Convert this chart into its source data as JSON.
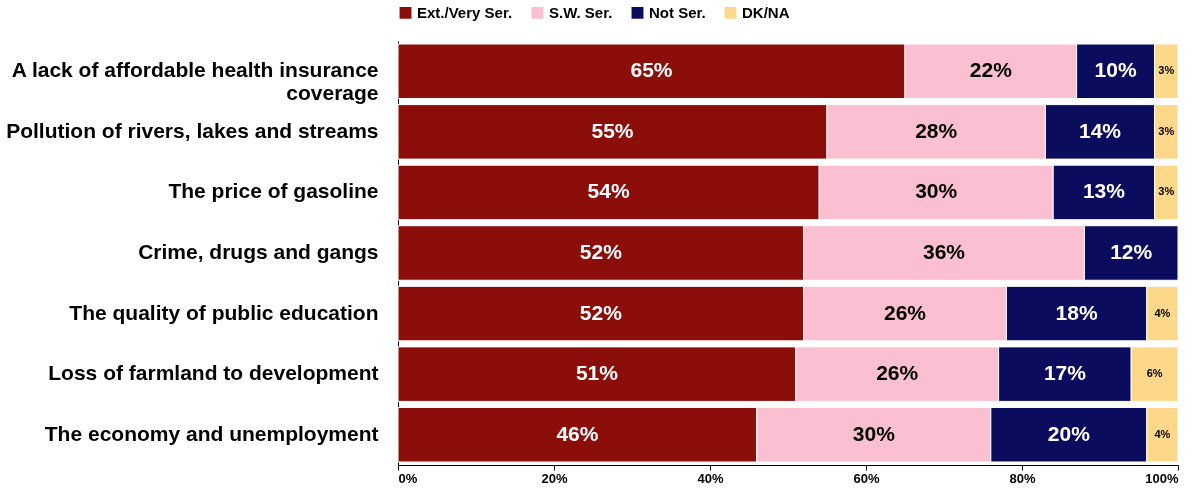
{
  "chart_data": {
    "type": "bar",
    "orientation": "horizontal",
    "stacked": true,
    "categories": [
      "A lack of affordable health insurance coverage",
      "Pollution of rivers, lakes and streams",
      "The price of gasoline",
      "Crime, drugs and gangs",
      "The quality of public education",
      "Loss of farmland to development",
      "The economy and unemployment"
    ],
    "series": [
      {
        "name": "Ext./Very Ser.",
        "color": "#8b0e0a",
        "values": [
          65,
          55,
          54,
          52,
          52,
          51,
          46
        ],
        "value_labels": [
          "65%",
          "55%",
          "54%",
          "52%",
          "52%",
          "51%",
          "46%"
        ]
      },
      {
        "name": "S.W. Ser.",
        "color": "#fbbfd2",
        "values": [
          22,
          28,
          30,
          36,
          26,
          26,
          30
        ],
        "value_labels": [
          "22%",
          "28%",
          "30%",
          "36%",
          "26%",
          "26%",
          "30%"
        ]
      },
      {
        "name": "Not Ser.",
        "color": "#0c0c5e",
        "values": [
          10,
          14,
          13,
          12,
          18,
          17,
          20
        ],
        "value_labels": [
          "10%",
          "14%",
          "13%",
          "12%",
          "18%",
          "17%",
          "20%"
        ]
      },
      {
        "name": "DK/NA",
        "color": "#fdd88a",
        "values": [
          3,
          3,
          3,
          null,
          4,
          6,
          4
        ],
        "value_labels": [
          "3%",
          "3%",
          "3%",
          null,
          "4%",
          "6%",
          "4%"
        ]
      }
    ],
    "xlim": [
      0,
      100
    ],
    "xticks": [
      {
        "value": 0,
        "label": "0%"
      },
      {
        "value": 20,
        "label": "20%"
      },
      {
        "value": 40,
        "label": "40%"
      },
      {
        "value": 60,
        "label": "60%"
      },
      {
        "value": 80,
        "label": "80%"
      },
      {
        "value": 100,
        "label": "100%"
      }
    ],
    "legend": "top",
    "grid": false
  }
}
